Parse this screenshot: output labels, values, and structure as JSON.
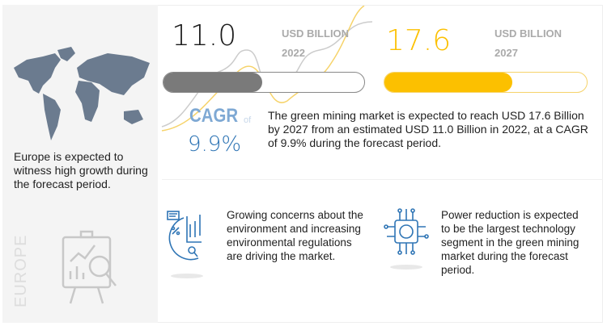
{
  "left": {
    "region_note": "Europe is expected to witness high growth during the forecast period.",
    "vertical_label": "EUROPE"
  },
  "stats": {
    "value_2022": "11.0",
    "unit_2022": "USD BILLION",
    "year_2022": "2022",
    "fill_2022": 0.49,
    "value_2027": "17.6",
    "unit_2027": "USD BILLION",
    "year_2027": "2027",
    "fill_2027": 0.63,
    "cagr_label": "CAGR",
    "cagr_of": "of",
    "cagr_value": "9.9%",
    "summary": "The green mining market is expected to reach USD 17.6 Billion by 2027 from an estimated USD 11.0 Billion in 2022, at a CAGR of 9.9% during the forecast period."
  },
  "drivers": {
    "text": "Growing concerns about the environment and increasing environmental regulations are driving the market."
  },
  "technology": {
    "text": "Power reduction is expected to be the largest technology segment in the green mining market during the forecast period."
  },
  "colors": {
    "gray_bar": "#7a7a7a",
    "yellow_bar": "#fcc000",
    "cagr": "#2f75b5",
    "cagr_label": "#7fa9d4",
    "map": "#6b7b8f",
    "icon_blue": "#2f75b5"
  }
}
